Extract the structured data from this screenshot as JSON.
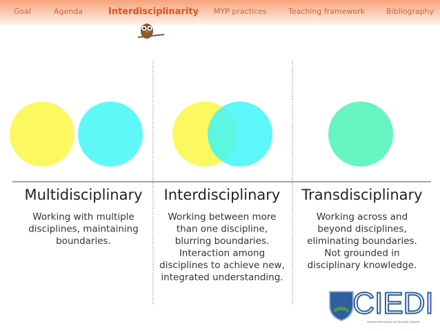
{
  "nav": {
    "items": [
      "Goal",
      "Agenda",
      "Interdisciplinarity",
      "MYP practices",
      "Teaching framework",
      "Bibliography"
    ],
    "active": 2
  },
  "columns": [
    {
      "title": "Multidisciplinary",
      "description": [
        "Working with multiple",
        "disciplines, maintaining",
        "boundaries."
      ]
    },
    {
      "title": "Interdisciplinary",
      "description": [
        "Working between more",
        "than one discipline,",
        "blurring boundaries.",
        "Interaction among",
        "disciplines to achieve new,",
        "integrated understanding."
      ]
    },
    {
      "title": "Transdisciplinary",
      "description": [
        "Working across and",
        "beyond disciplines,",
        "eliminating boundaries.",
        "Not grounded in",
        "disciplinary knowledge."
      ]
    }
  ],
  "logo": {
    "name": "CIEDI",
    "subtitle": "Colegio Internacional de Educación Integral"
  }
}
